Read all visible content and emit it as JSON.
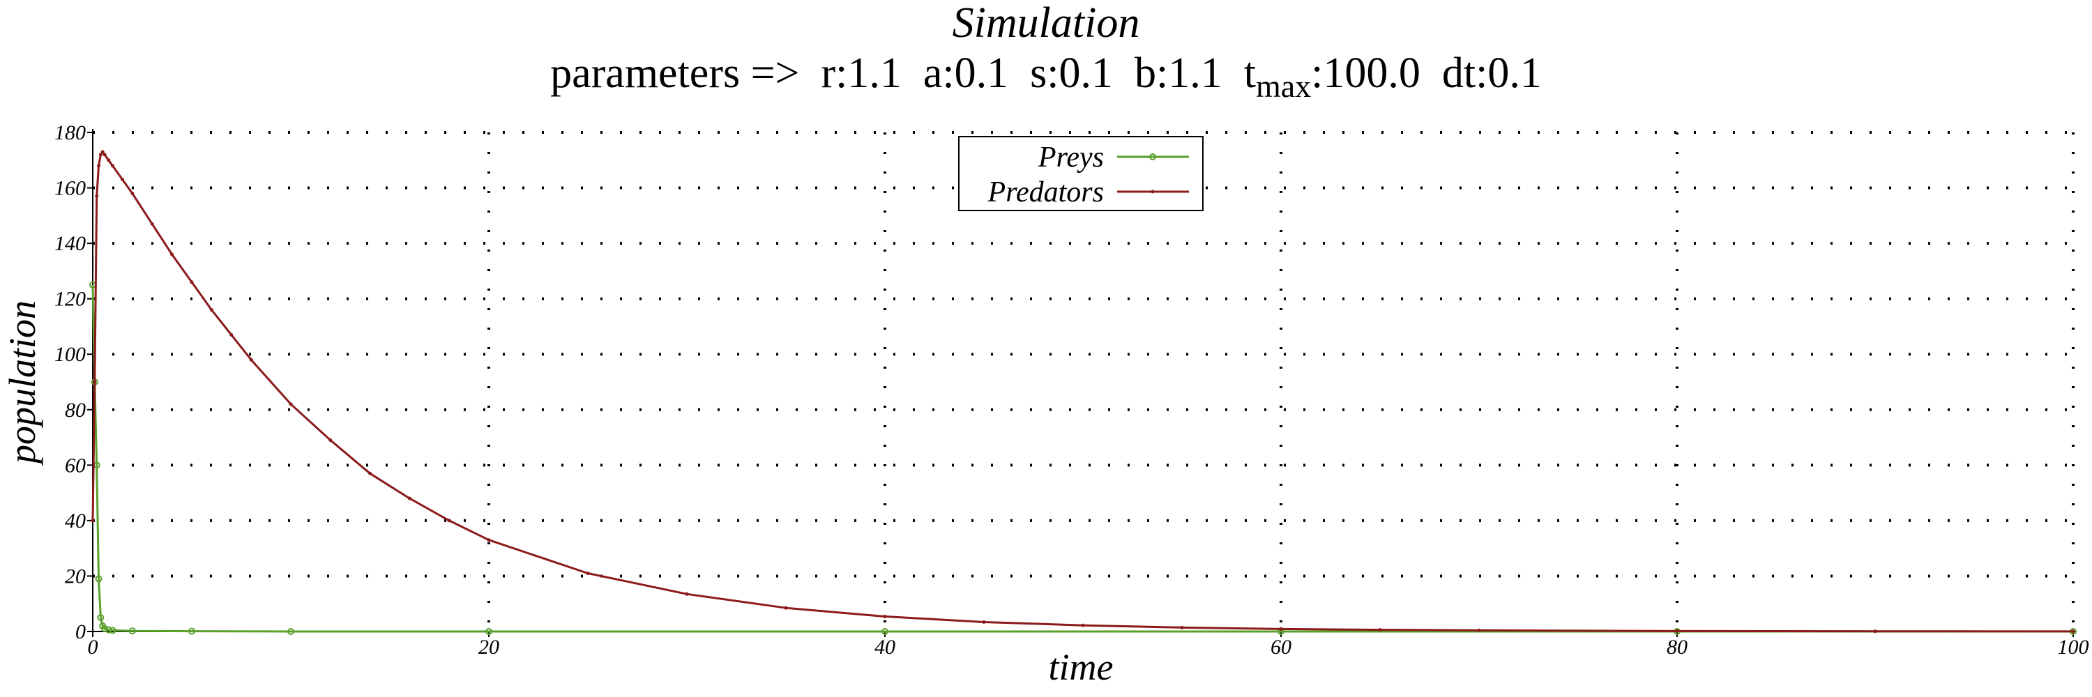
{
  "chart_data": {
    "type": "line",
    "title": "Simulation",
    "subtitle_parts": {
      "pre": "parameters =>  r:1.1  a:0.1  s:0.1  b:1.1  t",
      "sub": "max",
      "post": ":100.0  dt:0.1"
    },
    "xlabel": "time",
    "ylabel": "population",
    "xlim": [
      0,
      100
    ],
    "ylim": [
      0,
      180
    ],
    "x_ticks": [
      0,
      20,
      40,
      60,
      80,
      100
    ],
    "y_ticks": [
      0,
      20,
      40,
      60,
      80,
      100,
      120,
      140,
      160,
      180
    ],
    "grid": true,
    "legend_position": "top-center",
    "series": [
      {
        "name": "Preys",
        "color": "#5aa02c",
        "marker": "circle",
        "x": [
          0,
          0.1,
          0.2,
          0.3,
          0.4,
          0.5,
          0.6,
          0.8,
          1,
          2,
          5,
          10,
          20,
          40,
          60,
          80,
          100
        ],
        "y": [
          125,
          90,
          60,
          19,
          5,
          2,
          1,
          0.6,
          0.4,
          0.2,
          0.1,
          0,
          0,
          0,
          0,
          0,
          0
        ]
      },
      {
        "name": "Predators",
        "color": "#8b1a1a",
        "marker": "dot",
        "x": [
          0,
          0.1,
          0.2,
          0.3,
          0.4,
          0.5,
          0.6,
          0.8,
          1,
          1.5,
          2,
          3,
          4,
          5,
          6,
          7,
          8,
          10,
          12,
          14,
          16,
          18,
          20,
          25,
          30,
          35,
          40,
          45,
          50,
          55,
          60,
          65,
          70,
          80,
          90,
          100
        ],
        "y": [
          40,
          90,
          157,
          168,
          172,
          173,
          172,
          170,
          168,
          163,
          158,
          147,
          136,
          126,
          116,
          107,
          98,
          82,
          69,
          57,
          48,
          40,
          33,
          21,
          13.5,
          8.5,
          5.4,
          3.4,
          2.2,
          1.4,
          0.9,
          0.6,
          0.4,
          0.15,
          0.07,
          0.03
        ]
      }
    ]
  }
}
